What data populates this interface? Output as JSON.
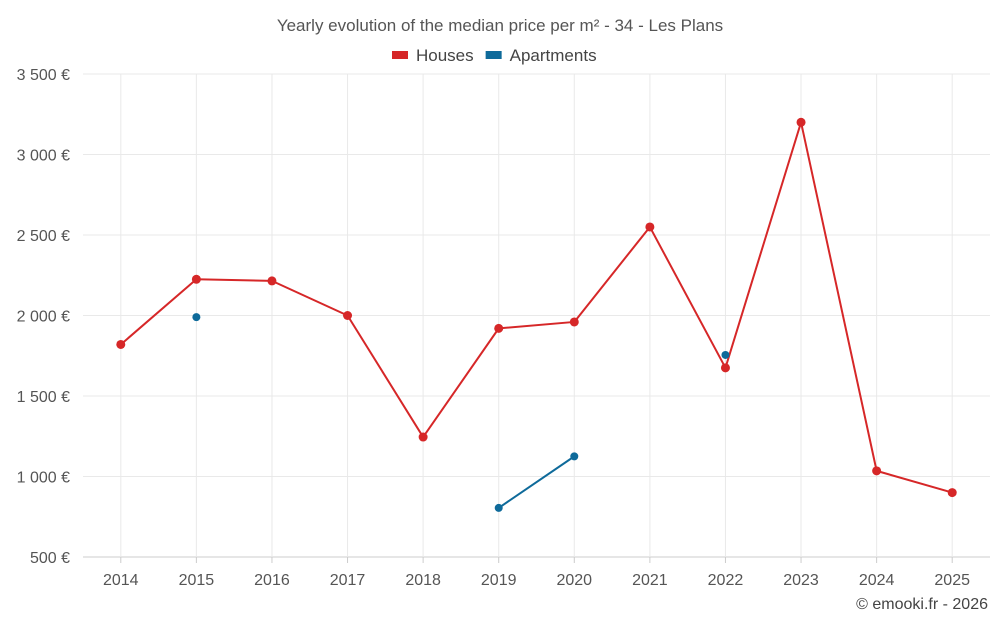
{
  "chart_data": {
    "type": "line",
    "title": "Yearly evolution of the median price per m² - 34 - Les Plans",
    "categories": [
      "2014",
      "2015",
      "2016",
      "2017",
      "2018",
      "2019",
      "2020",
      "2021",
      "2022",
      "2023",
      "2024",
      "2025"
    ],
    "ylim": [
      500,
      3500
    ],
    "yticks": [
      500,
      1000,
      1500,
      2000,
      2500,
      3000,
      3500
    ],
    "ytick_labels": [
      "500 €",
      "1 000 €",
      "1 500 €",
      "2 000 €",
      "2 500 €",
      "3 000 €",
      "3 500 €"
    ],
    "series": [
      {
        "name": "Houses",
        "color": "#d62728",
        "values": [
          1820,
          2225,
          2215,
          2000,
          1245,
          1920,
          1960,
          2550,
          1675,
          3200,
          1035,
          900
        ]
      },
      {
        "name": "Apartments",
        "color": "#0e6a9a",
        "values": [
          null,
          1990,
          null,
          null,
          null,
          805,
          1125,
          null,
          1755,
          null,
          null,
          null
        ]
      }
    ],
    "xlabel": "",
    "ylabel": "",
    "grid": true,
    "legend_position": "top-center"
  },
  "copyright": "© emooki.fr - 2026"
}
